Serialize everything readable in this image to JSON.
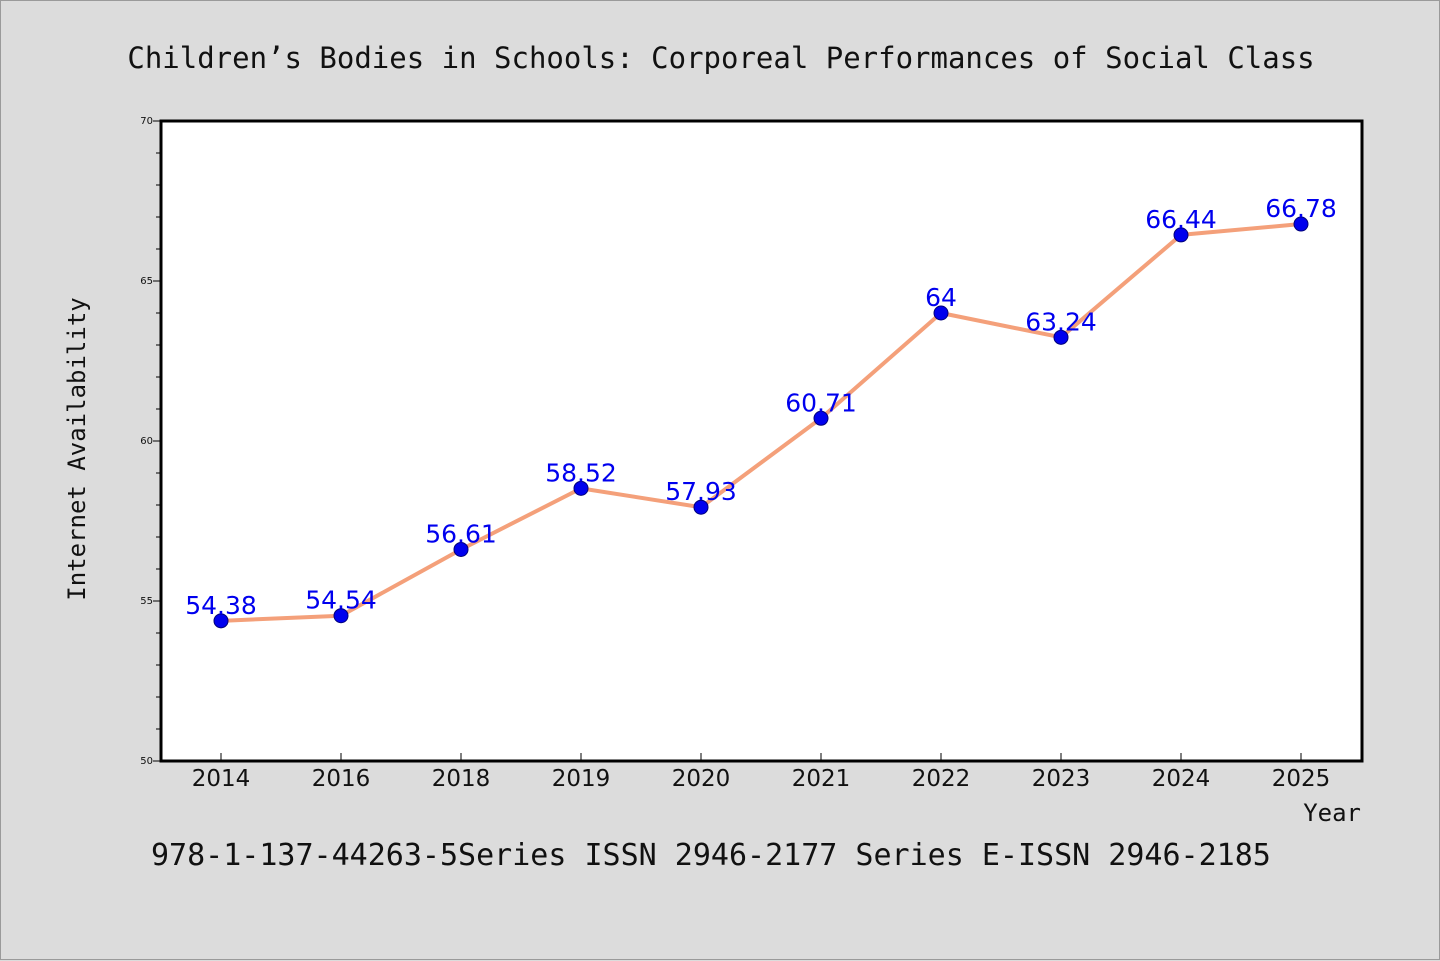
{
  "chart_data": {
    "type": "line",
    "title": "Children’s Bodies in Schools: Corporeal Performances of Social Class",
    "xlabel": "Year",
    "ylabel": "Internet Availability",
    "categories": [
      "2014",
      "2016",
      "2018",
      "2019",
      "2020",
      "2021",
      "2022",
      "2023",
      "2024",
      "2025"
    ],
    "series": [
      {
        "values": [
          54.38,
          54.54,
          56.61,
          58.52,
          57.93,
          60.71,
          64,
          63.24,
          66.44,
          66.78
        ],
        "labels": [
          "54.38",
          "54.54",
          "56.61",
          "58.52",
          "57.93",
          "60.71",
          "64",
          "63.24",
          "66.44",
          "66.78"
        ],
        "line_color": "#f4a07a",
        "marker_color": "#0000ee",
        "label_color": "#0000ee"
      }
    ],
    "ylim": [
      50,
      70
    ],
    "yticks": [
      "50",
      "55",
      "60",
      "65",
      "70"
    ],
    "grid": false,
    "legend": "none"
  },
  "footer": {
    "text": "978-1-137-44263-5Series ISSN 2946-2177 Series E-ISSN 2946-2185"
  },
  "colors": {
    "background": "#dcdcdc",
    "plot_background": "#ffffff",
    "axes": "#000000"
  }
}
